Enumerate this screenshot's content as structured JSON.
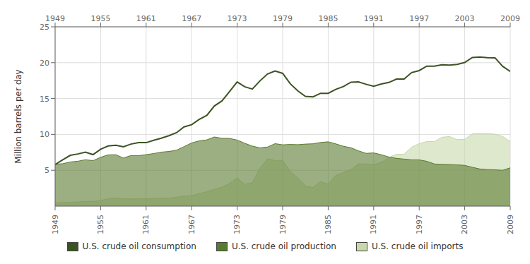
{
  "chart_data": {
    "type": "area",
    "ylabel": "Million barrels per day",
    "x": [
      1949,
      1950,
      1951,
      1952,
      1953,
      1954,
      1955,
      1956,
      1957,
      1958,
      1959,
      1960,
      1961,
      1962,
      1963,
      1964,
      1965,
      1966,
      1967,
      1968,
      1969,
      1970,
      1971,
      1972,
      1973,
      1974,
      1975,
      1976,
      1977,
      1978,
      1979,
      1980,
      1981,
      1982,
      1983,
      1984,
      1985,
      1986,
      1987,
      1988,
      1989,
      1990,
      1991,
      1992,
      1993,
      1994,
      1995,
      1996,
      1997,
      1998,
      1999,
      2000,
      2001,
      2002,
      2003,
      2004,
      2005,
      2006,
      2007,
      2008,
      2009
    ],
    "series": [
      {
        "name": "U.S. crude oil consumption",
        "type": "line",
        "color": "#3b5323",
        "values": [
          5.78,
          6.46,
          7.08,
          7.27,
          7.53,
          7.18,
          7.93,
          8.39,
          8.49,
          8.28,
          8.65,
          8.86,
          8.85,
          9.18,
          9.48,
          9.82,
          10.24,
          11.05,
          11.35,
          12.1,
          12.66,
          13.97,
          14.67,
          15.99,
          17.31,
          16.65,
          16.32,
          17.46,
          18.43,
          18.85,
          18.51,
          17.06,
          16.06,
          15.3,
          15.23,
          15.73,
          15.73,
          16.28,
          16.67,
          17.28,
          17.32,
          16.99,
          16.71,
          17.03,
          17.24,
          17.72,
          17.72,
          18.62,
          18.9,
          19.52,
          19.52,
          19.7,
          19.65,
          19.76,
          20.03,
          20.73,
          20.8,
          20.69,
          20.68,
          19.5,
          18.77
        ]
      },
      {
        "name": "U.S. crude oil production",
        "type": "area",
        "color": "#5a7a2e",
        "values": [
          5.85,
          5.91,
          6.16,
          6.26,
          6.47,
          6.34,
          6.81,
          7.15,
          7.17,
          6.71,
          7.05,
          7.04,
          7.18,
          7.33,
          7.53,
          7.62,
          7.8,
          8.3,
          8.81,
          9.1,
          9.24,
          9.64,
          9.46,
          9.44,
          9.21,
          8.77,
          8.37,
          8.13,
          8.24,
          8.71,
          8.55,
          8.6,
          8.57,
          8.65,
          8.69,
          8.88,
          8.97,
          8.68,
          8.35,
          8.14,
          7.71,
          7.36,
          7.42,
          7.17,
          6.85,
          6.66,
          6.56,
          6.46,
          6.45,
          6.25,
          5.88,
          5.82,
          5.8,
          5.75,
          5.68,
          5.42,
          5.18,
          5.1,
          5.06,
          5.0,
          5.34
        ]
      },
      {
        "name": "U.S. crude oil imports",
        "type": "area",
        "color": "#c8d8ac",
        "values": [
          0.45,
          0.49,
          0.53,
          0.58,
          0.64,
          0.65,
          0.78,
          1.03,
          1.12,
          1.04,
          1.0,
          1.02,
          1.0,
          1.07,
          1.1,
          1.1,
          1.24,
          1.39,
          1.47,
          1.74,
          2.01,
          2.36,
          2.65,
          3.17,
          3.95,
          3.03,
          3.28,
          5.29,
          6.61,
          6.36,
          6.39,
          4.83,
          3.93,
          2.82,
          2.6,
          3.43,
          3.07,
          4.28,
          4.67,
          5.11,
          5.9,
          5.89,
          5.78,
          6.08,
          6.78,
          7.23,
          7.23,
          8.23,
          8.72,
          9.01,
          9.0,
          9.61,
          9.7,
          9.27,
          9.31,
          10.08,
          10.13,
          10.12,
          10.03,
          9.73,
          9.0
        ]
      }
    ],
    "xlim": [
      1949,
      2009
    ],
    "xticks": [
      1949,
      1955,
      1961,
      1967,
      1973,
      1979,
      1985,
      1991,
      1997,
      2003,
      2009
    ],
    "ylim": [
      0,
      25
    ],
    "yticks": [
      5,
      10,
      15,
      20,
      25
    ],
    "grid": true,
    "legend": "bottom"
  }
}
